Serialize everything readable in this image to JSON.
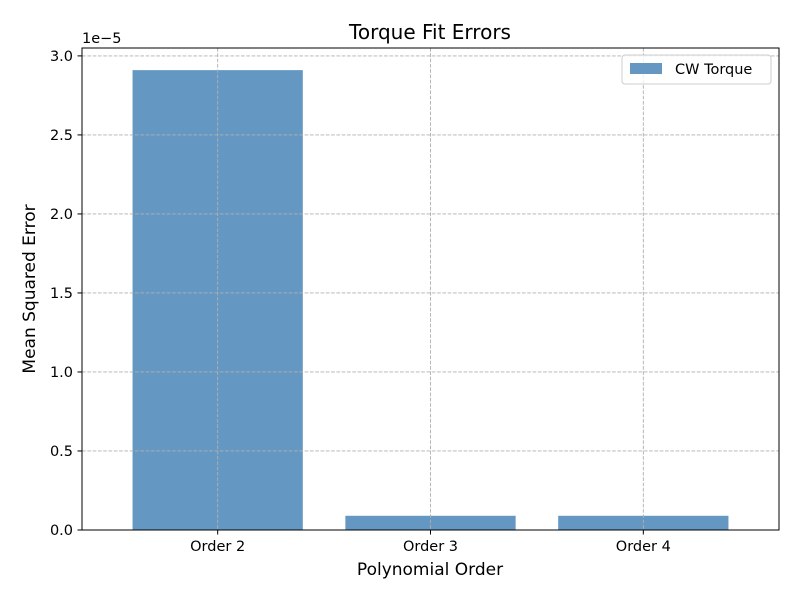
{
  "chart_data": {
    "type": "bar",
    "title": "Torque Fit Errors",
    "xlabel": "Polynomial Order",
    "ylabel": "Mean Squared Error",
    "y_offset_label": "1e−5",
    "categories": [
      "Order 2",
      "Order 3",
      "Order 4"
    ],
    "series": [
      {
        "name": "CW Torque",
        "values": [
          2.91e-05,
          9e-07,
          9e-07
        ],
        "color": "#6497c2"
      }
    ],
    "ylim": [
      0,
      3.05e-05
    ],
    "yticks": [
      0,
      5e-06,
      1e-05,
      1.5e-05,
      2e-05,
      2.5e-05,
      3e-05
    ],
    "ytick_labels": [
      "0.0",
      "0.5",
      "1.0",
      "1.5",
      "2.0",
      "2.5",
      "3.0"
    ],
    "grid": true,
    "legend_position": "upper right"
  }
}
